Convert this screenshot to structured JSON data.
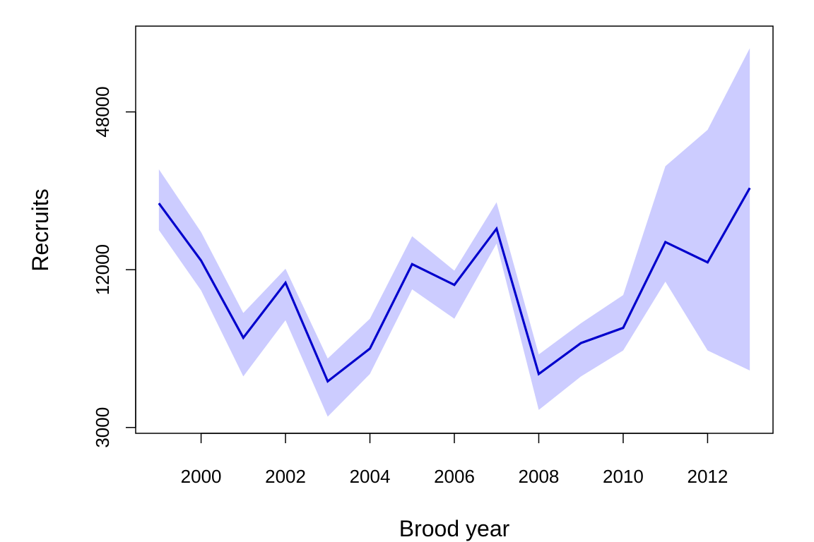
{
  "chart_data": {
    "type": "line",
    "xlabel": "Brood year",
    "ylabel": "Recruits",
    "y_scale": "log",
    "xlim": [
      1998.45,
      2013.55
    ],
    "ylim": [
      2850,
      102000
    ],
    "x_ticks": [
      2000,
      2002,
      2004,
      2006,
      2008,
      2010,
      2012
    ],
    "x_tick_labels": [
      "2000",
      "2002",
      "2004",
      "2006",
      "2008",
      "2010",
      "2012"
    ],
    "y_ticks": [
      3000,
      12000,
      48000
    ],
    "y_tick_labels": [
      "3000",
      "12000",
      "48000"
    ],
    "grid": false,
    "x": [
      1999,
      2000,
      2001,
      2002,
      2003,
      2004,
      2005,
      2006,
      2007,
      2008,
      2009,
      2010,
      2011,
      2012,
      2013
    ],
    "series": [
      {
        "values": [
          21500,
          13000,
          6600,
          10700,
          4500,
          6000,
          12600,
          10500,
          17200,
          4800,
          6300,
          7200,
          15300,
          12800,
          24600
        ],
        "color": "#0000CC",
        "interval": {
          "lower": [
            17000,
            10000,
            4700,
            7700,
            3300,
            4800,
            10100,
            7800,
            15100,
            3500,
            4700,
            5900,
            10800,
            5900,
            4950
          ],
          "upper": [
            29000,
            16700,
            8200,
            12100,
            5500,
            7800,
            16100,
            11900,
            21700,
            5700,
            7500,
            9600,
            29800,
            41000,
            84000
          ],
          "color": "#CCCCFF"
        }
      }
    ]
  }
}
